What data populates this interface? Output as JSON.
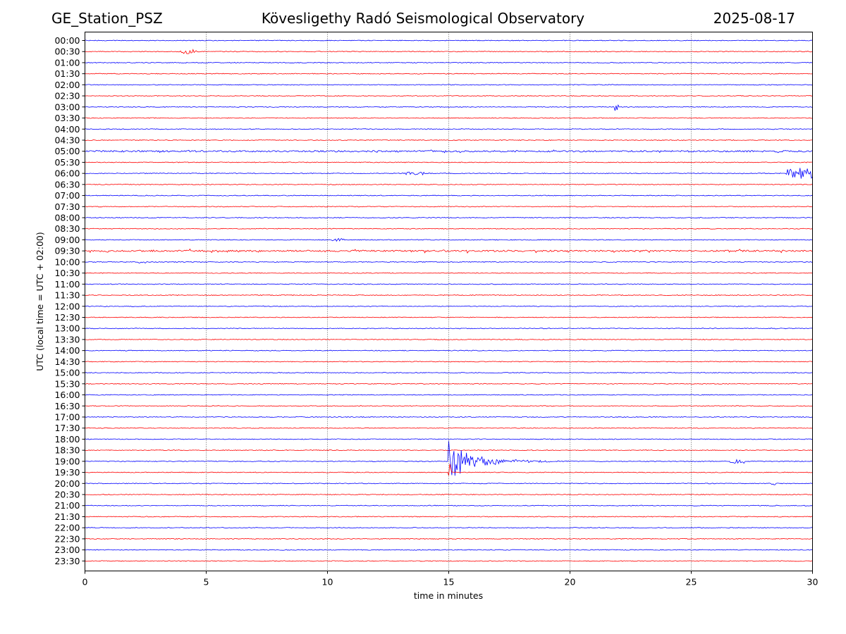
{
  "header": {
    "station": "GE_Station_PSZ",
    "title": "Kövesligethy Radó Seismological Observatory",
    "date": "2025-08-17"
  },
  "chart_data": {
    "type": "line",
    "xlabel": "time in minutes",
    "ylabel": "UTC (local time = UTC + 02:00)",
    "xlim": [
      0,
      30
    ],
    "x_ticks": [
      "0",
      "5",
      "10",
      "15",
      "20",
      "25",
      "30"
    ],
    "row_labels": [
      "00:00",
      "00:30",
      "01:00",
      "01:30",
      "02:00",
      "02:30",
      "03:00",
      "03:30",
      "04:00",
      "04:30",
      "05:00",
      "05:30",
      "06:00",
      "06:30",
      "07:00",
      "07:30",
      "08:00",
      "08:30",
      "09:00",
      "09:30",
      "10:00",
      "10:30",
      "11:00",
      "11:30",
      "12:00",
      "12:30",
      "13:00",
      "13:30",
      "14:00",
      "14:30",
      "15:00",
      "15:30",
      "16:00",
      "16:30",
      "17:00",
      "17:30",
      "18:00",
      "18:30",
      "19:00",
      "19:30",
      "20:00",
      "20:30",
      "21:00",
      "21:30",
      "22:00",
      "22:30",
      "23:00",
      "23:30"
    ],
    "trace_colors": [
      "#0000ff",
      "#ff0000"
    ],
    "grid": "vertical dotted lines at 5-minute intervals",
    "events": [
      {
        "row": "00:30",
        "start": 3.9,
        "end": 4.6,
        "amplitude": 3
      },
      {
        "row": "03:00",
        "start": 21.85,
        "end": 22.0,
        "amplitude": 6
      },
      {
        "row": "05:00",
        "start": 0.0,
        "end": 30.0,
        "amplitude": 2
      },
      {
        "row": "06:00",
        "start": 13.2,
        "end": 14.0,
        "amplitude": 2
      },
      {
        "row": "06:00",
        "start": 28.9,
        "end": 30.0,
        "amplitude": 8
      },
      {
        "row": "09:00",
        "start": 10.2,
        "end": 10.7,
        "amplitude": 2
      },
      {
        "row": "09:30",
        "start": 0.0,
        "end": 30.0,
        "amplitude": 3
      },
      {
        "row": "10:00",
        "start": 2.2,
        "end": 2.5,
        "amplitude": 2
      },
      {
        "row": "19:00",
        "start": 15.0,
        "end": 20.0,
        "amplitude": 28
      },
      {
        "row": "19:00",
        "start": 26.6,
        "end": 27.2,
        "amplitude": 3
      },
      {
        "row": "19:30",
        "start": 15.0,
        "end": 15.1,
        "amplitude": 14
      },
      {
        "row": "20:00",
        "start": 28.3,
        "end": 28.5,
        "amplitude": 2
      }
    ]
  }
}
